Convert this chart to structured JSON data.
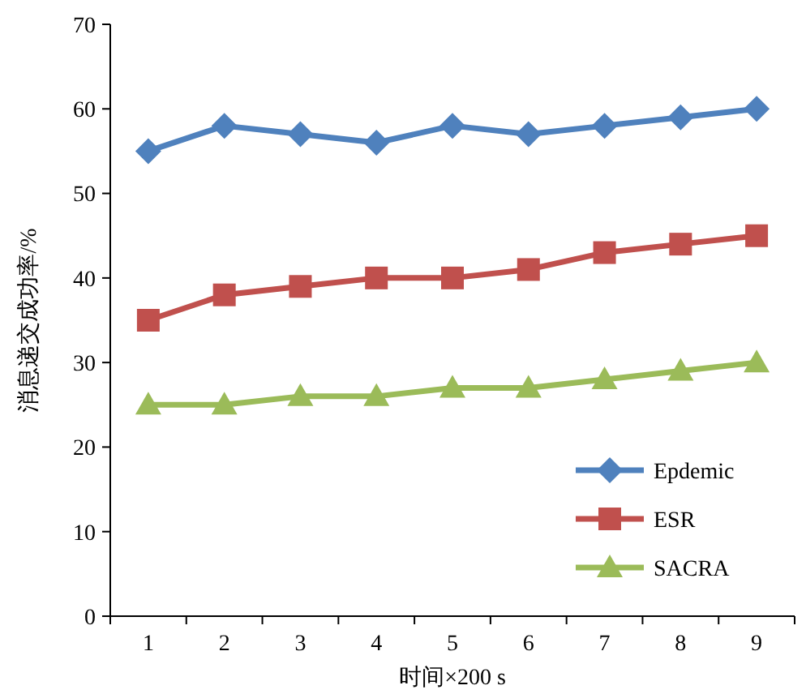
{
  "chart_data": {
    "type": "line",
    "xlabel": "时间×200 s",
    "ylabel": "消息递交成功率/%",
    "categories": [
      "1",
      "2",
      "3",
      "4",
      "5",
      "6",
      "7",
      "8",
      "9"
    ],
    "series": [
      {
        "name": "Epdemic",
        "color": "#4f81bd",
        "marker": "diamond",
        "values": [
          55,
          58,
          57,
          56,
          58,
          57,
          58,
          59,
          60
        ]
      },
      {
        "name": "ESR",
        "color": "#c0504d",
        "marker": "square",
        "values": [
          35,
          38,
          39,
          40,
          40,
          41,
          43,
          44,
          45
        ]
      },
      {
        "name": "SACRA",
        "color": "#9bbb59",
        "marker": "triangle",
        "values": [
          25,
          25,
          26,
          26,
          27,
          27,
          28,
          29,
          30
        ]
      }
    ],
    "ylim": [
      0,
      70
    ],
    "yticks": [
      0,
      10,
      20,
      30,
      40,
      50,
      60,
      70
    ],
    "grid": false,
    "legend": "bottom right"
  }
}
